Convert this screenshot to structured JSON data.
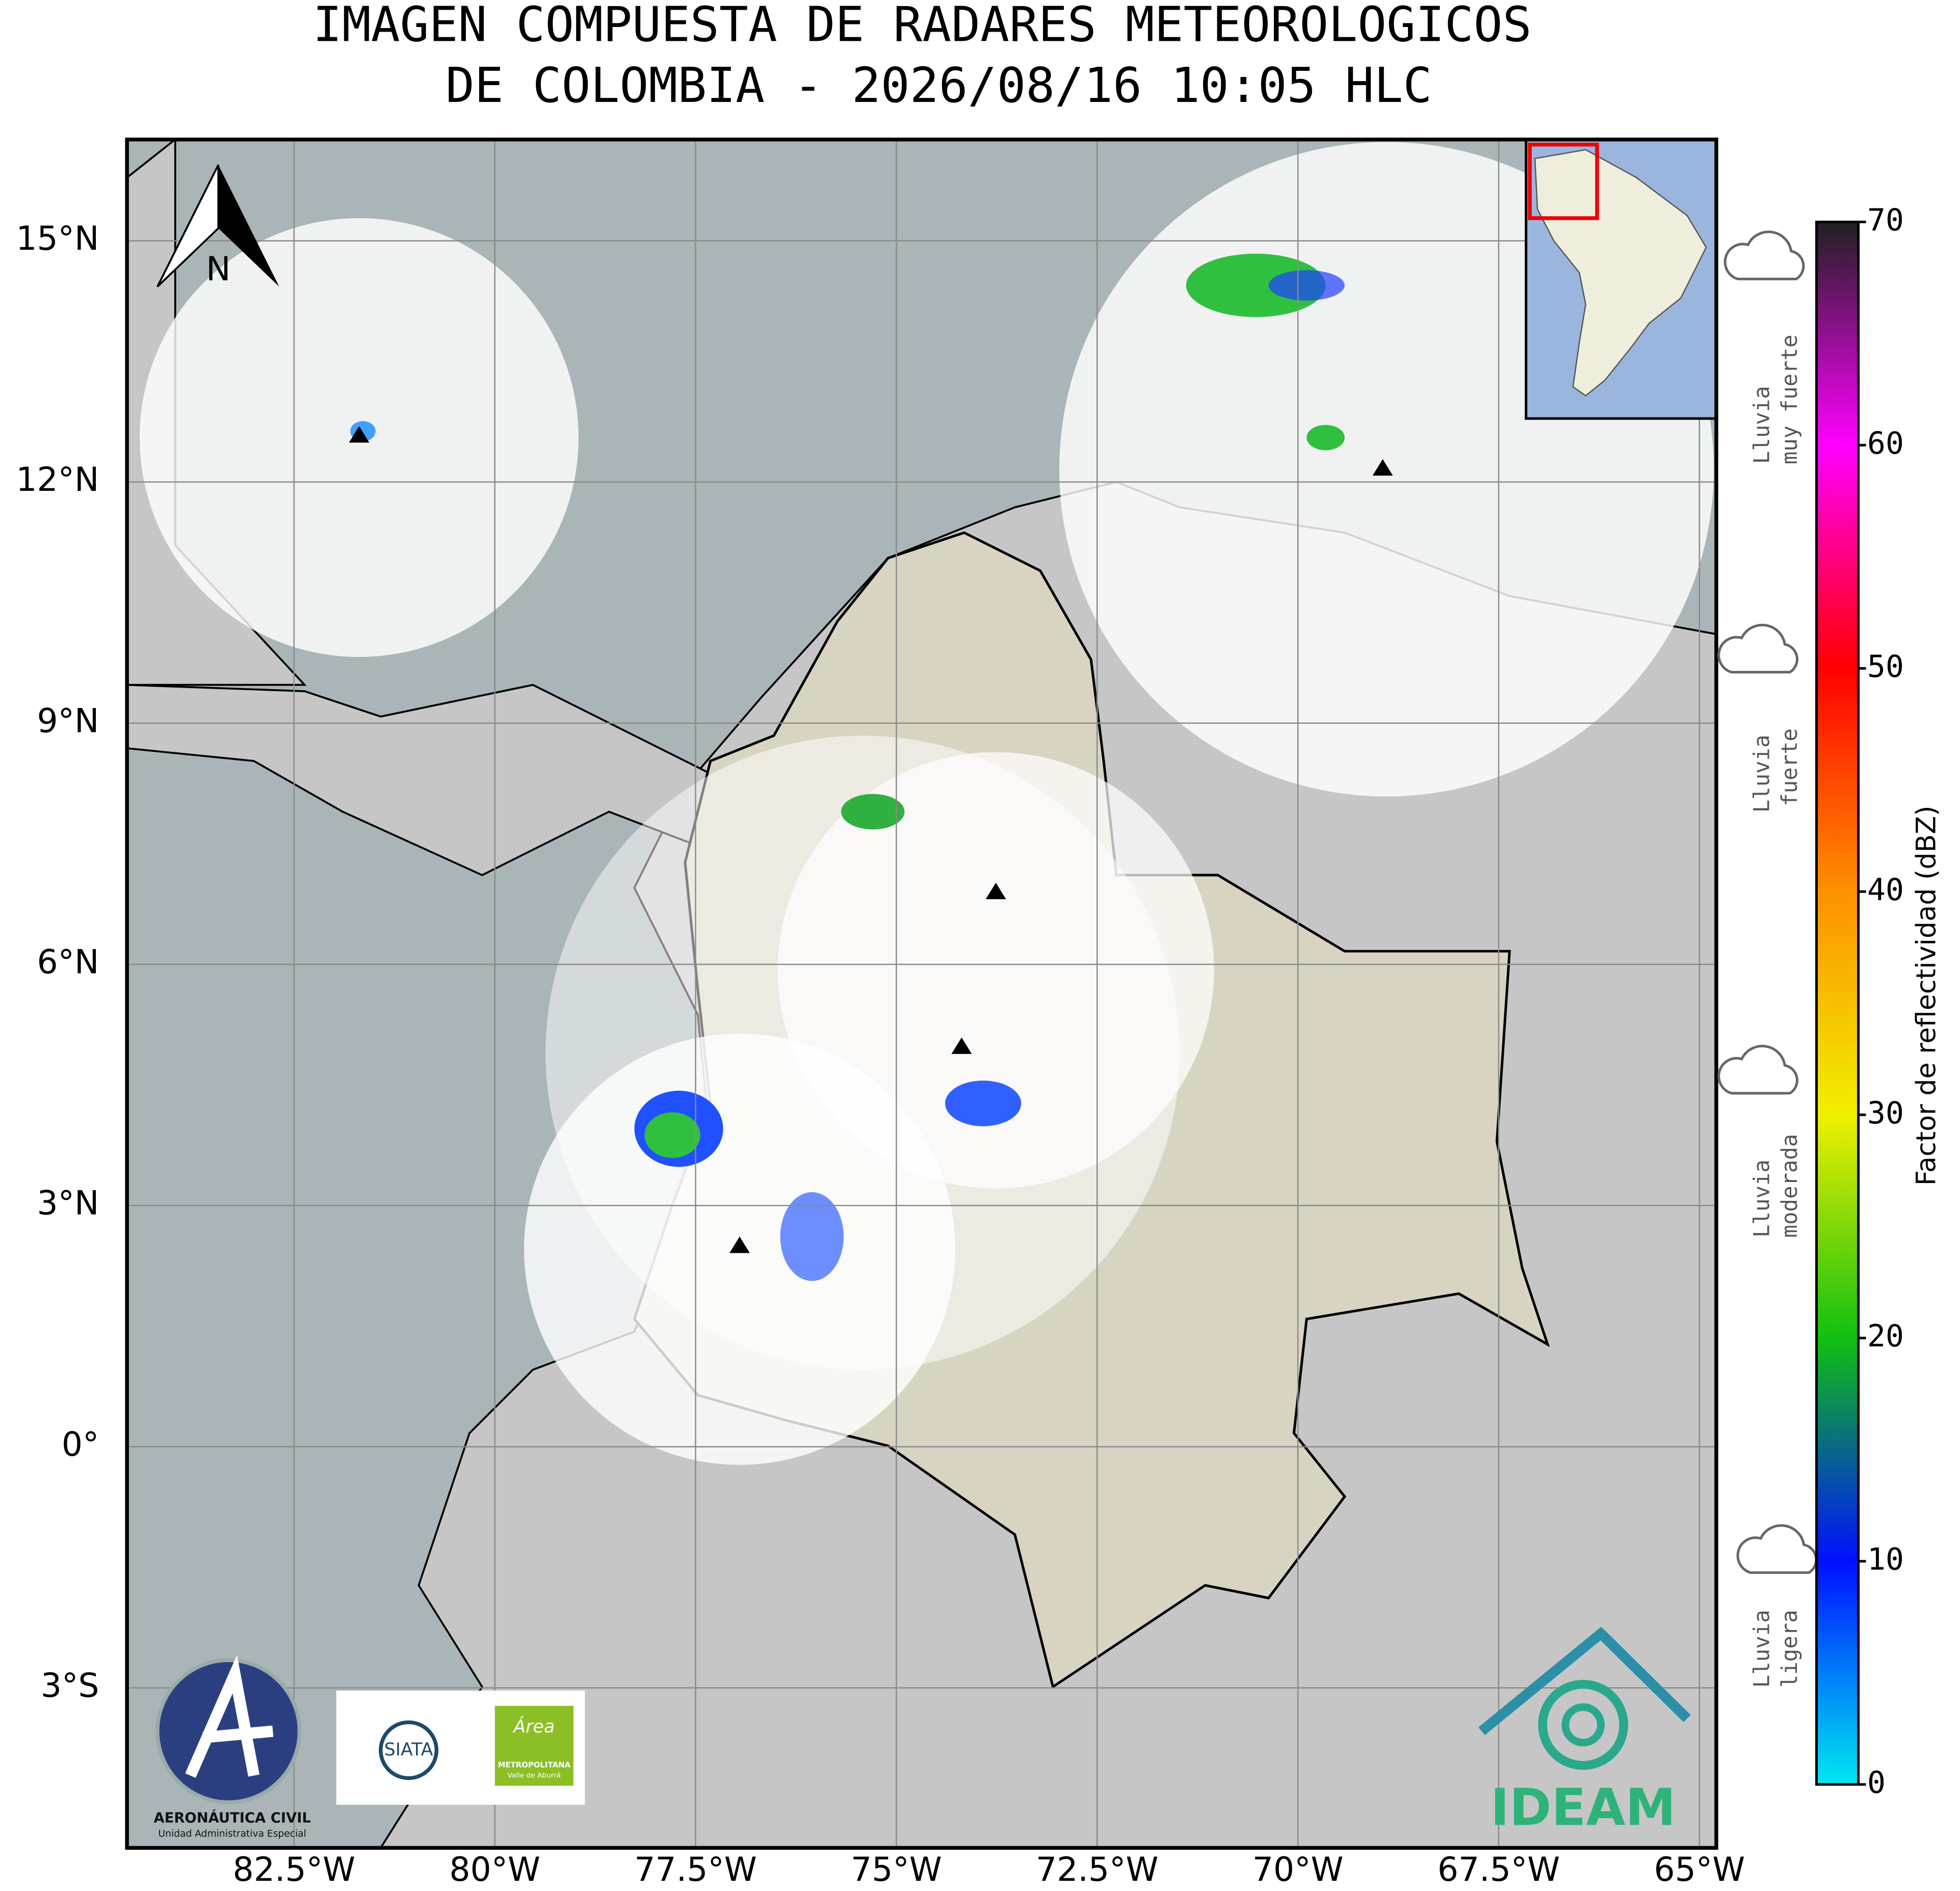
{
  "title_lines": [
    "IMAGEN COMPUESTA DE RADARES METEOROLOGICOS",
    "DE COLOMBIA - 2026/08/16 10:05 HLC"
  ],
  "map": {
    "lon_range": [
      -84.58,
      -64.79
    ],
    "lat_range": [
      -4.99,
      16.26
    ],
    "grid": true,
    "north_label": "N",
    "lon_ticks": [
      {
        "value": -82.5,
        "label": "82.5°W"
      },
      {
        "value": -80,
        "label": "80°W"
      },
      {
        "value": -77.5,
        "label": "77.5°W"
      },
      {
        "value": -75,
        "label": "75°W"
      },
      {
        "value": -72.5,
        "label": "72.5°W"
      },
      {
        "value": -70,
        "label": "70°W"
      },
      {
        "value": -67.5,
        "label": "67.5°W"
      },
      {
        "value": -65,
        "label": "65°W"
      }
    ],
    "lat_ticks": [
      {
        "value": 15,
        "label": "15°N"
      },
      {
        "value": 12,
        "label": "12°N"
      },
      {
        "value": 9,
        "label": "9°N"
      },
      {
        "value": 6,
        "label": "6°N"
      },
      {
        "value": 3,
        "label": "3°N"
      },
      {
        "value": 0,
        "label": "0°"
      },
      {
        "value": -3,
        "label": "3°S"
      }
    ]
  },
  "colorbar": {
    "label": "Factor de reflectividad (dBZ)",
    "lim": [
      0,
      70
    ],
    "ticks": [
      0,
      10,
      20,
      30,
      40,
      50,
      60,
      70
    ],
    "colors": [
      "#00e8f0",
      "#0010ff",
      "#10c010",
      "#f0f000",
      "#ff9000",
      "#ff0000",
      "#ff00ff",
      "#202020"
    ]
  },
  "rain_categories": [
    {
      "lines": [
        "Lluvia",
        "muy fuerte"
      ]
    },
    {
      "lines": [
        "Lluvia",
        "fuerte"
      ]
    },
    {
      "lines": [
        "Lluvia",
        "moderada"
      ]
    },
    {
      "lines": [
        "Lluvia",
        "ligera"
      ]
    }
  ],
  "logos": {
    "aerocivil": {
      "name": "AERONÁUTICA CIVIL",
      "subtitle": "Unidad Administrativa Especial"
    },
    "siata": "SIATA",
    "area": {
      "lines": [
        "Área",
        "METROPOLITANA",
        "Valle de Aburrá"
      ]
    },
    "ideam": "IDEAM"
  }
}
